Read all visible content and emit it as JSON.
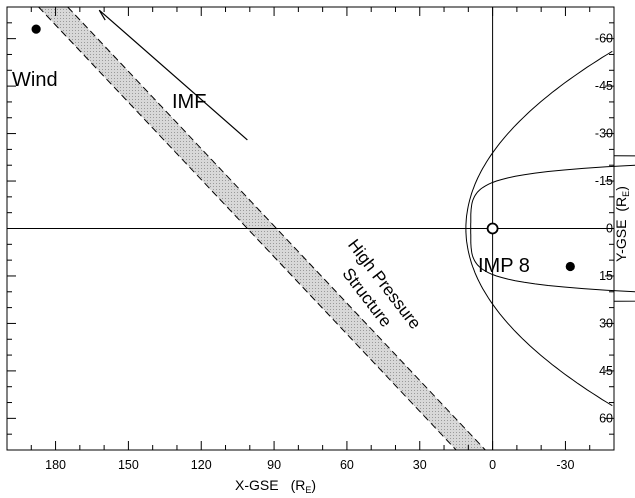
{
  "chart_data": {
    "type": "diagram",
    "x_axis": {
      "label": "X-GSE",
      "unit": "R",
      "unit_sub": "E",
      "range": [
        200,
        -50
      ],
      "ticks": [
        180,
        150,
        120,
        90,
        60,
        30,
        0,
        -30
      ],
      "tick_labels": [
        "180",
        "150",
        "120",
        "90",
        "60",
        "30",
        "0",
        "-30"
      ]
    },
    "y_axis": {
      "label": "Y-GSE",
      "unit": "R",
      "unit_sub": "E",
      "range": [
        -70,
        70
      ],
      "ticks": [
        -60,
        -45,
        -30,
        -15,
        0,
        15,
        30,
        45,
        60
      ],
      "tick_labels": [
        "-60",
        "-45",
        "-30",
        "-15",
        "0",
        "15",
        "30",
        "45",
        "60"
      ]
    },
    "objects": [
      {
        "name": "Wind",
        "x": 188,
        "y": -63
      },
      {
        "name": "IMP 8",
        "x": -32,
        "y": 12
      },
      {
        "name": "Earth",
        "x": 0,
        "y": 0
      }
    ],
    "labels": {
      "wind": "Wind",
      "imf": "IMF",
      "imp8": "IMP 8",
      "structure_line1": "High Pressure",
      "structure_line2": "Structure"
    },
    "structure_band": {
      "upper_edge": [
        [
          187,
          -70
        ],
        [
          15,
          70
        ]
      ],
      "lower_edge": [
        [
          175,
          -70
        ],
        [
          3,
          70
        ]
      ]
    },
    "imf_arrow": {
      "from": [
        101,
        -28
      ],
      "to": [
        162,
        -69
      ]
    }
  }
}
